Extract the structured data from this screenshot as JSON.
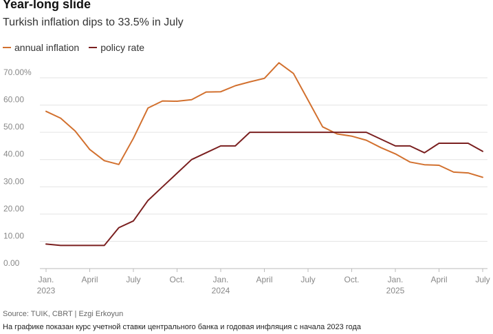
{
  "header": {
    "title": "Year-long slide",
    "subtitle": "Turkish inflation dips to 33.5% in July"
  },
  "footer": {
    "source": "Source: TUIK, CBRT | Ezgi Erkoyun",
    "note": "На графике показан курс учетной ставки центрального банка и годовая инфляция с начала 2023 года"
  },
  "colors": {
    "annual_inflation": "#d2702e",
    "policy_rate": "#7a1f1f",
    "grid": "#e3e3e3",
    "axis": "#bbbbbb"
  },
  "chart_data": {
    "type": "line",
    "title": "Year-long slide",
    "subtitle": "Turkish inflation dips to 33.5% in July",
    "xlabel": "",
    "ylabel": "",
    "ylim": [
      0,
      70
    ],
    "yticks": [
      0,
      10,
      20,
      30,
      40,
      50,
      60,
      70
    ],
    "ytick_labels": [
      "0.00",
      "10.00",
      "20.00",
      "30.00",
      "40.00",
      "50.00",
      "60.00",
      "70.00%"
    ],
    "xticks": [
      {
        "index": 0,
        "label": "Jan.",
        "year": "2023"
      },
      {
        "index": 3,
        "label": "April",
        "year": ""
      },
      {
        "index": 6,
        "label": "July",
        "year": ""
      },
      {
        "index": 9,
        "label": "Oct.",
        "year": ""
      },
      {
        "index": 12,
        "label": "Jan.",
        "year": "2024"
      },
      {
        "index": 15,
        "label": "April",
        "year": ""
      },
      {
        "index": 18,
        "label": "July",
        "year": ""
      },
      {
        "index": 21,
        "label": "Oct.",
        "year": ""
      },
      {
        "index": 24,
        "label": "Jan.",
        "year": "2025"
      },
      {
        "index": 27,
        "label": "April",
        "year": ""
      },
      {
        "index": 30,
        "label": "July",
        "year": ""
      }
    ],
    "months": [
      "2023-01",
      "2023-02",
      "2023-03",
      "2023-04",
      "2023-05",
      "2023-06",
      "2023-07",
      "2023-08",
      "2023-09",
      "2023-10",
      "2023-11",
      "2023-12",
      "2024-01",
      "2024-02",
      "2024-03",
      "2024-04",
      "2024-05",
      "2024-06",
      "2024-07",
      "2024-08",
      "2024-09",
      "2024-10",
      "2024-11",
      "2024-12",
      "2025-01",
      "2025-02",
      "2025-03",
      "2025-04",
      "2025-05",
      "2025-06",
      "2025-07"
    ],
    "legend": "top-left",
    "grid": true,
    "series": [
      {
        "name": "annual inflation",
        "key": "annual_inflation",
        "values": [
          57.7,
          55.2,
          50.5,
          43.7,
          39.6,
          38.2,
          47.8,
          58.9,
          61.5,
          61.4,
          62.0,
          64.8,
          64.9,
          67.1,
          68.5,
          69.8,
          75.5,
          71.6,
          61.8,
          52.0,
          49.4,
          48.6,
          47.1,
          44.4,
          42.1,
          39.1,
          38.1,
          37.9,
          35.4,
          35.1,
          33.5
        ]
      },
      {
        "name": "policy rate",
        "key": "policy_rate",
        "values": [
          9.0,
          8.5,
          8.5,
          8.5,
          8.5,
          15.0,
          17.5,
          25.0,
          30.0,
          35.0,
          40.0,
          42.5,
          45.0,
          45.0,
          50.0,
          50.0,
          50.0,
          50.0,
          50.0,
          50.0,
          50.0,
          50.0,
          50.0,
          47.5,
          45.0,
          45.0,
          42.5,
          46.0,
          46.0,
          46.0,
          43.0
        ]
      }
    ]
  }
}
